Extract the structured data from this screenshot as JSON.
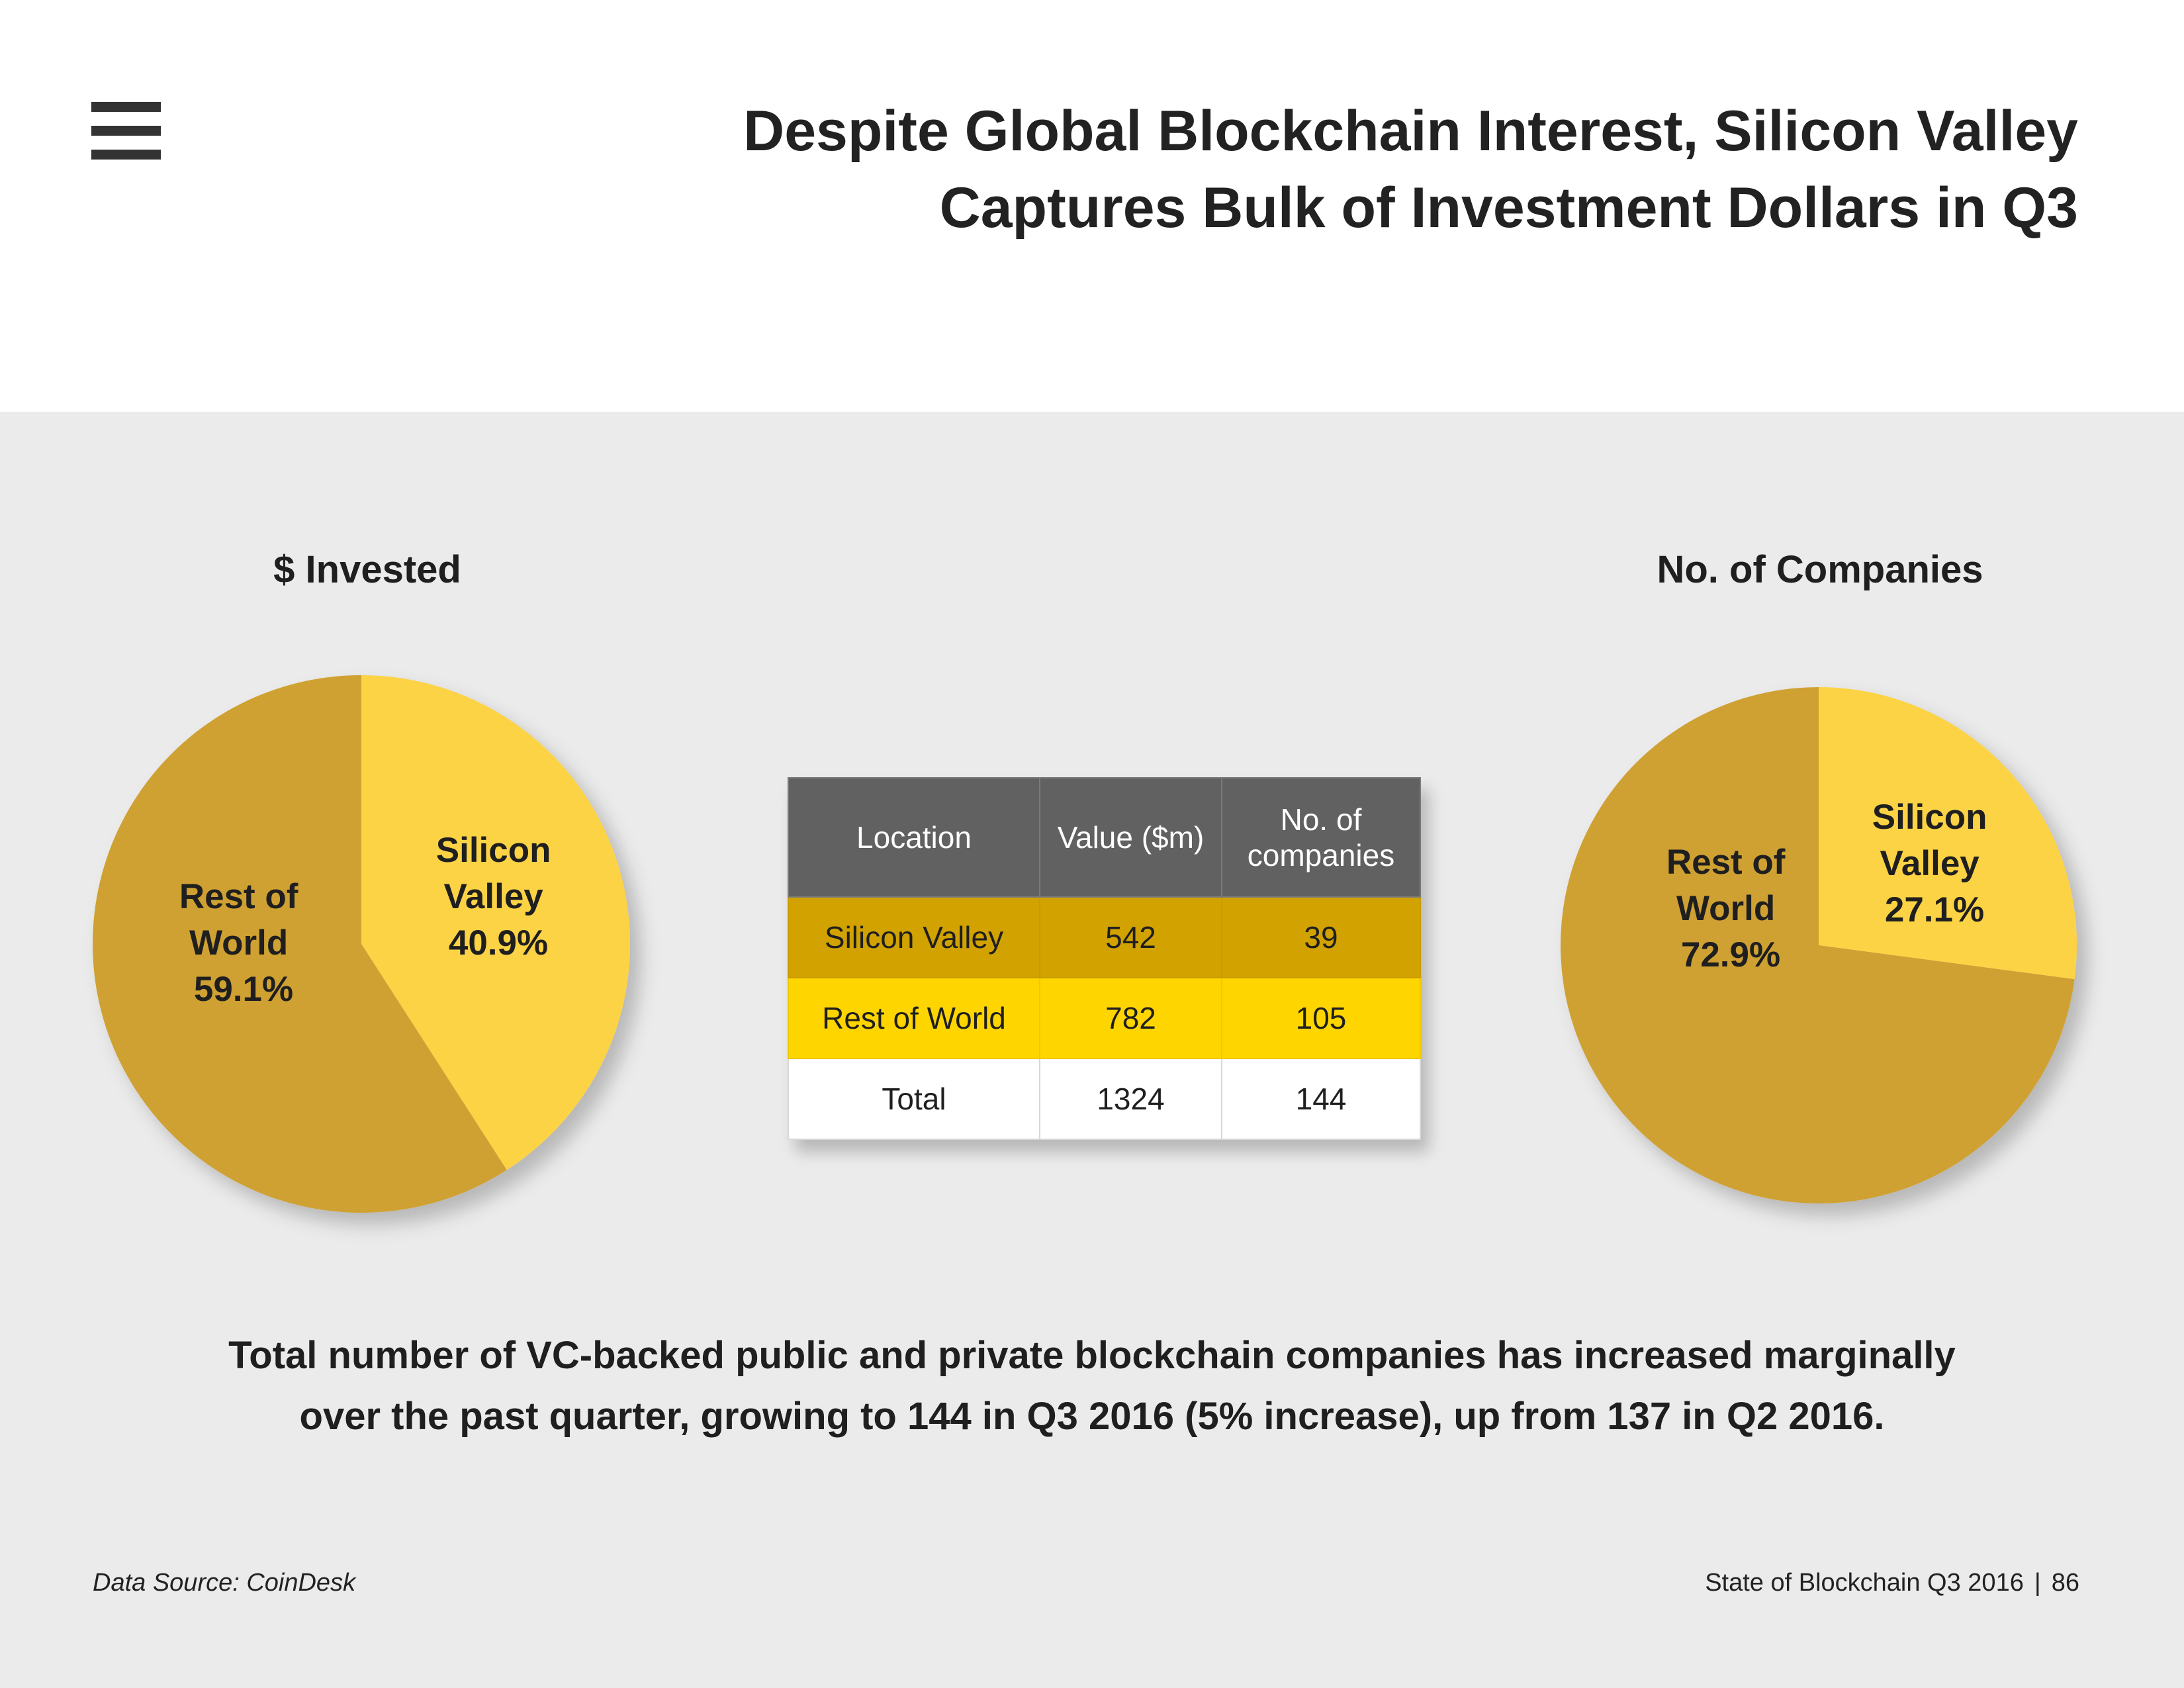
{
  "header": {
    "title_line1": "Despite Global Blockchain Interest, Silicon Valley",
    "title_line2": "Captures Bulk of Investment Dollars in Q3",
    "menu_icon": "hamburger-menu-icon"
  },
  "colors": {
    "silicon_valley": "#fcd344",
    "rest_of_world": "#cfa133",
    "table_header": "#616161",
    "table_row_sv": "#d1a200",
    "table_row_rw": "#ffd500",
    "panel_background": "#ebebeb"
  },
  "chart_data": [
    {
      "type": "pie",
      "title": "$ Invested",
      "slices": [
        {
          "label_line1": "Silicon",
          "label_line2": "Valley",
          "value": 40.9,
          "pct_text": "40.9%"
        },
        {
          "label_line1": "Rest of",
          "label_line2": "World",
          "value": 59.1,
          "pct_text": "59.1%"
        }
      ]
    },
    {
      "type": "pie",
      "title": "No. of Companies",
      "slices": [
        {
          "label_line1": "Silicon",
          "label_line2": "Valley",
          "value": 27.1,
          "pct_text": "27.1%"
        },
        {
          "label_line1": "Rest of",
          "label_line2": "World",
          "value": 72.9,
          "pct_text": "72.9%"
        }
      ]
    },
    {
      "type": "table",
      "headers": {
        "location": "Location",
        "value": "Value ($m)",
        "companies_line1": "No. of",
        "companies_line2": "companies"
      },
      "rows": [
        {
          "location": "Silicon Valley",
          "value": "542",
          "companies": "39"
        },
        {
          "location": "Rest of World",
          "value": "782",
          "companies": "105"
        },
        {
          "location": "Total",
          "value": "1324",
          "companies": "144"
        }
      ]
    }
  ],
  "summary": {
    "line1": "Total number of VC-backed public and private blockchain companies has increased marginally",
    "line2": "over the past quarter, growing to 144 in Q3 2016 (5% increase), up from 137 in Q2 2016."
  },
  "footer": {
    "source": "Data Source: CoinDesk",
    "report": "State of Blockchain Q3 2016",
    "separator": "|",
    "page": "86"
  }
}
